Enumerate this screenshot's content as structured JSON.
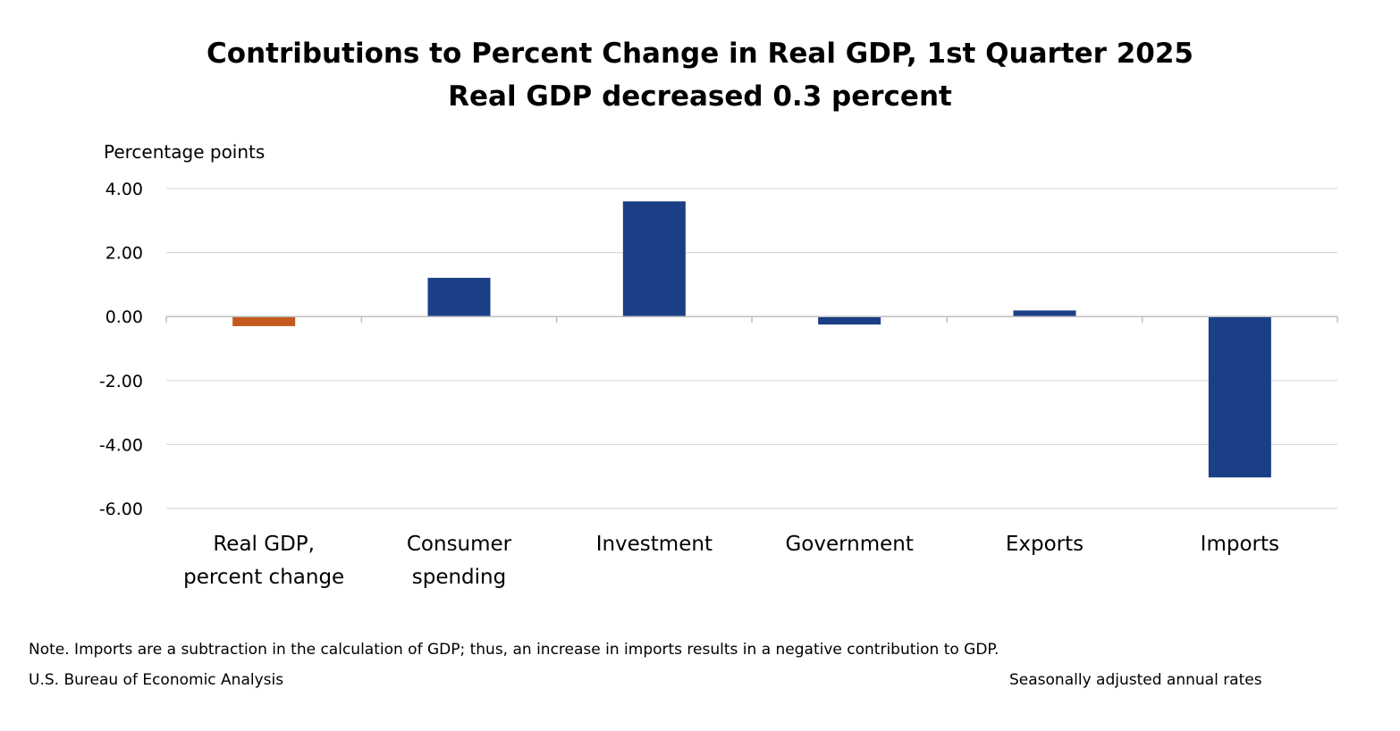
{
  "chart_data": {
    "type": "bar",
    "title": "Contributions to Percent Change in Real GDP, 1st Quarter 2025",
    "subtitle": "Real GDP decreased 0.3 percent",
    "ylabel": "Percentage points",
    "xlabel": "",
    "ylim": [
      -6,
      4
    ],
    "yticks": [
      4,
      2,
      0,
      -2,
      -4,
      -6
    ],
    "ytick_labels": [
      "4.00",
      "2.00",
      "0.00",
      "-2.00",
      "-4.00",
      "-6.00"
    ],
    "grid": true,
    "categories": [
      [
        "Real GDP,",
        "percent change"
      ],
      [
        "Consumer",
        "spending"
      ],
      [
        "Investment"
      ],
      [
        "Government"
      ],
      [
        "Exports"
      ],
      [
        "Imports"
      ]
    ],
    "values": [
      -0.3,
      1.21,
      3.6,
      -0.25,
      0.19,
      -5.03
    ],
    "colors": [
      "#C55A1E",
      "#1B3F86",
      "#1B3F86",
      "#1B3F86",
      "#1B3F86",
      "#1B3F86"
    ]
  },
  "footer": {
    "note": "Note. Imports are a subtraction in the calculation of GDP; thus, an increase in imports results in a negative contribution to GDP.",
    "source": "U.S. Bureau of Economic Analysis",
    "rates": "Seasonally adjusted annual rates"
  }
}
